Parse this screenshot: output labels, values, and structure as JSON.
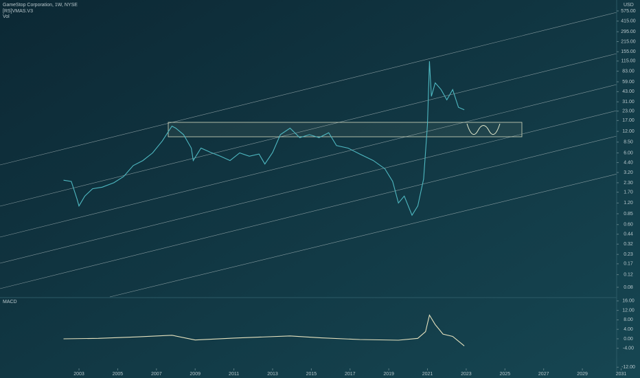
{
  "chart_data": [
    {
      "type": "line",
      "title": "GameStop Corporation, 1W, NYSE",
      "indicators": [
        "[RS]VMAS.V3",
        "Vol"
      ],
      "unit": "USD",
      "log_scale": true,
      "color": "#4fb9c2",
      "x": [
        2002.2,
        2002.6,
        2002.9,
        2003.0,
        2003.3,
        2003.7,
        2004.2,
        2004.8,
        2005.3,
        2005.8,
        2006.3,
        2006.8,
        2007.3,
        2007.8,
        2008.0,
        2008.4,
        2008.8,
        2008.9,
        2009.3,
        2009.8,
        2010.3,
        2010.8,
        2011.3,
        2011.8,
        2012.3,
        2012.6,
        2013.0,
        2013.4,
        2013.9,
        2014.4,
        2014.9,
        2015.4,
        2015.9,
        2016.3,
        2016.9,
        2017.5,
        2018.2,
        2018.8,
        2019.2,
        2019.5,
        2019.8,
        2020.2,
        2020.5,
        2020.8,
        2021.0,
        2021.1,
        2021.2,
        2021.4,
        2021.7,
        2022.0,
        2022.3,
        2022.6,
        2022.9
      ],
      "values": [
        2.5,
        2.4,
        1.36,
        1.09,
        1.5,
        1.9,
        2.0,
        2.3,
        2.8,
        4.0,
        4.7,
        6.0,
        8.8,
        14.2,
        13.3,
        10.8,
        7.0,
        4.7,
        7.0,
        6.1,
        5.4,
        4.7,
        6.0,
        5.4,
        5.8,
        4.2,
        6.1,
        10.8,
        13.3,
        9.8,
        10.8,
        9.8,
        11.5,
        7.6,
        7.0,
        5.8,
        4.7,
        3.6,
        2.4,
        1.2,
        1.5,
        0.81,
        1.09,
        2.6,
        15,
        114,
        37,
        57,
        46,
        33,
        46,
        26,
        24
      ],
      "xlim": [
        1998.92,
        2030.77
      ],
      "ylim": [
        0.0587,
        818
      ],
      "yticks": [
        {
          "value": 575,
          "label": "575.00"
        },
        {
          "value": 415,
          "label": "415.00"
        },
        {
          "value": 295,
          "label": "295.00"
        },
        {
          "value": 215,
          "label": "215.00"
        },
        {
          "value": 155,
          "label": "155.00"
        },
        {
          "value": 115,
          "label": "115.00"
        },
        {
          "value": 83,
          "label": "83.00"
        },
        {
          "value": 59,
          "label": "59.00"
        },
        {
          "value": 43,
          "label": "43.00"
        },
        {
          "value": 31,
          "label": "31.00"
        },
        {
          "value": 23,
          "label": "23.00"
        },
        {
          "value": 17,
          "label": "17.00"
        },
        {
          "value": 12,
          "label": "12.00"
        },
        {
          "value": 8.5,
          "label": "8.50"
        },
        {
          "value": 6,
          "label": "6.00"
        },
        {
          "value": 4.4,
          "label": "4.40"
        },
        {
          "value": 3.2,
          "label": "3.20"
        },
        {
          "value": 2.3,
          "label": "2.30"
        },
        {
          "value": 1.7,
          "label": "1.70"
        },
        {
          "value": 1.2,
          "label": "1.20"
        },
        {
          "value": 0.85,
          "label": "0.85"
        },
        {
          "value": 0.6,
          "label": "0.60"
        },
        {
          "value": 0.44,
          "label": "0.44"
        },
        {
          "value": 0.32,
          "label": "0.32"
        },
        {
          "value": 0.23,
          "label": "0.23"
        },
        {
          "value": 0.17,
          "label": "0.17"
        },
        {
          "value": 0.12,
          "label": "0.12"
        },
        {
          "value": 0.08,
          "label": "0.08"
        }
      ]
    },
    {
      "type": "line",
      "title": "MACD",
      "color": "#e8e4c0",
      "x": [
        2002.2,
        2004.0,
        2006.0,
        2007.8,
        2009.0,
        2011.0,
        2013.9,
        2015.5,
        2017.5,
        2019.5,
        2020.5,
        2020.9,
        2021.1,
        2021.4,
        2021.8,
        2022.3,
        2022.9
      ],
      "values": [
        0,
        0.2,
        0.8,
        1.5,
        -0.5,
        0.3,
        1.2,
        0.4,
        -0.3,
        -0.6,
        0.2,
        3,
        10,
        6,
        2,
        1,
        -3
      ],
      "xlim": [
        1998.92,
        2030.77
      ],
      "ylim": [
        -12.5,
        17.7
      ],
      "yticks": [
        {
          "value": 16,
          "label": "16.00"
        },
        {
          "value": 12,
          "label": "12.00"
        },
        {
          "value": 8,
          "label": "8.00"
        },
        {
          "value": 4,
          "label": "4.00"
        },
        {
          "value": 0,
          "label": "0.00"
        },
        {
          "value": -4,
          "label": "-4.00"
        },
        {
          "value": -12,
          "label": "-12.00"
        }
      ],
      "xticks": [
        2003,
        2005,
        2007,
        2009,
        2011,
        2013,
        2015,
        2017,
        2019,
        2021,
        2023,
        2025,
        2027,
        2029,
        2031
      ]
    }
  ]
}
